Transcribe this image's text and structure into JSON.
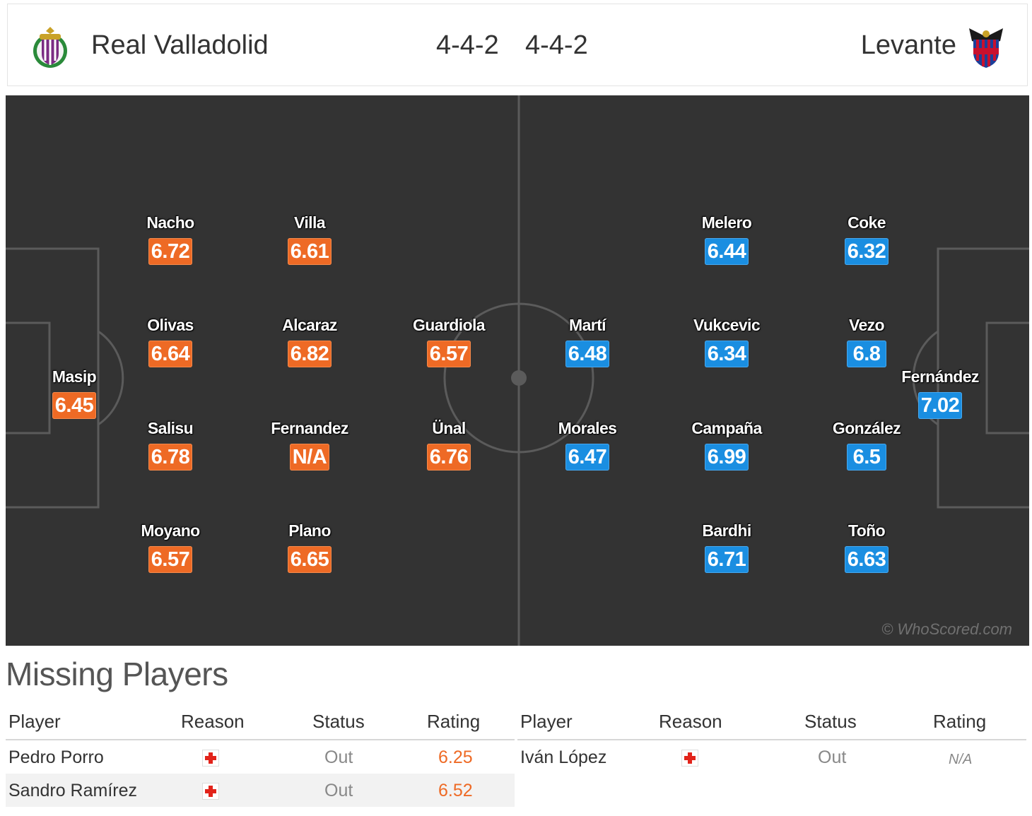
{
  "header": {
    "home_team": "Real Valladolid",
    "home_formation": "4-4-2",
    "away_formation": "4-4-2",
    "away_team": "Levante",
    "home_crest_icon": "real-valladolid-crest-icon",
    "away_crest_icon": "levante-crest-icon"
  },
  "colors": {
    "home_rating": "#ee6a25",
    "away_rating": "#1a8ee1",
    "pitch": "#333333"
  },
  "pitch": {
    "watermark": "© WhoScored.com",
    "home_players": [
      {
        "name": "Masip",
        "rating": "6.45"
      },
      {
        "name": "Nacho",
        "rating": "6.72"
      },
      {
        "name": "Olivas",
        "rating": "6.64"
      },
      {
        "name": "Salisu",
        "rating": "6.78"
      },
      {
        "name": "Moyano",
        "rating": "6.57"
      },
      {
        "name": "Villa",
        "rating": "6.61"
      },
      {
        "name": "Alcaraz",
        "rating": "6.82"
      },
      {
        "name": "Fernandez",
        "rating": "N/A"
      },
      {
        "name": "Plano",
        "rating": "6.65"
      },
      {
        "name": "Guardiola",
        "rating": "6.57"
      },
      {
        "name": "Ünal",
        "rating": "6.76"
      }
    ],
    "away_players": [
      {
        "name": "Fernández",
        "rating": "7.02"
      },
      {
        "name": "Coke",
        "rating": "6.32"
      },
      {
        "name": "Vezo",
        "rating": "6.8"
      },
      {
        "name": "González",
        "rating": "6.5"
      },
      {
        "name": "Toño",
        "rating": "6.63"
      },
      {
        "name": "Melero",
        "rating": "6.44"
      },
      {
        "name": "Vukcevic",
        "rating": "6.34"
      },
      {
        "name": "Campaña",
        "rating": "6.99"
      },
      {
        "name": "Bardhi",
        "rating": "6.71"
      },
      {
        "name": "Martí",
        "rating": "6.48"
      },
      {
        "name": "Morales",
        "rating": "6.47"
      }
    ]
  },
  "missing": {
    "title": "Missing Players",
    "columns": [
      "Player",
      "Reason",
      "Status",
      "Rating"
    ],
    "home_rows": [
      {
        "player": "Pedro Porro",
        "reason_icon": "injury-icon",
        "status": "Out",
        "rating": "6.25"
      },
      {
        "player": "Sandro Ramírez",
        "reason_icon": "injury-icon",
        "status": "Out",
        "rating": "6.52"
      }
    ],
    "away_rows": [
      {
        "player": "Iván López",
        "reason_icon": "injury-icon",
        "status": "Out",
        "rating": "N/A"
      }
    ]
  }
}
